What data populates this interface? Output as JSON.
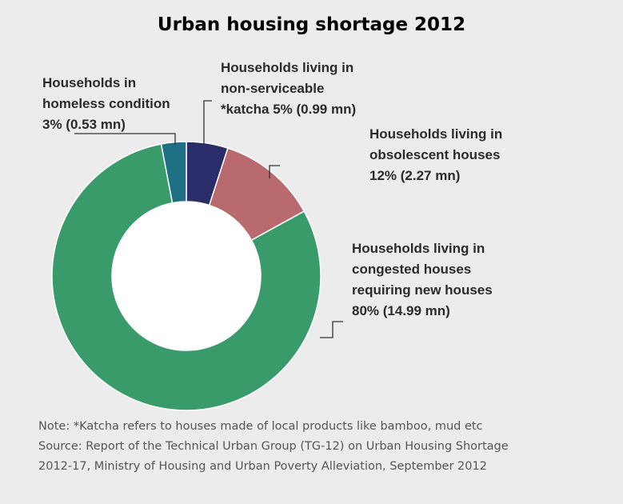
{
  "chart_data": {
    "type": "pie",
    "title": "Urban housing shortage 2012",
    "slices": [
      {
        "label": "Households living in non-serviceable *katcha",
        "percent": 5,
        "value_mn": 0.99,
        "color": "#2b2d6b"
      },
      {
        "label": "Households living in obsolescent houses",
        "percent": 12,
        "value_mn": 2.27,
        "color": "#b86a6e"
      },
      {
        "label": "Households living in congested houses requiring new houses",
        "percent": 80,
        "value_mn": 14.99,
        "color": "#3a9b6a"
      },
      {
        "label": "Households in homeless condition",
        "percent": 3,
        "value_mn": 0.53,
        "color": "#1e6f82"
      }
    ]
  },
  "labels": {
    "homeless": {
      "line1": "Households in",
      "line2": "homeless condition",
      "line3": "3% (0.53 mn)"
    },
    "katcha": {
      "line1": "Households living in",
      "line2": "non-serviceable",
      "line3": "*katcha  5% (0.99 mn)"
    },
    "obsolescent": {
      "line1": "Households living in",
      "line2": "obsolescent houses",
      "line3": "12% (2.27 mn)"
    },
    "congested": {
      "line1": "Households living in",
      "line2": "congested houses",
      "line3": "requiring new houses",
      "line4": "80% (14.99 mn)"
    }
  },
  "notes": {
    "line1": "Note: *Katcha refers to houses made of local products like bamboo, mud etc",
    "line2": "Source: Report of the Technical Urban Group (TG-12) on Urban Housing Shortage",
    "line3": "2012-17, Ministry of Housing and Urban Poverty Alleviation, September 2012"
  }
}
